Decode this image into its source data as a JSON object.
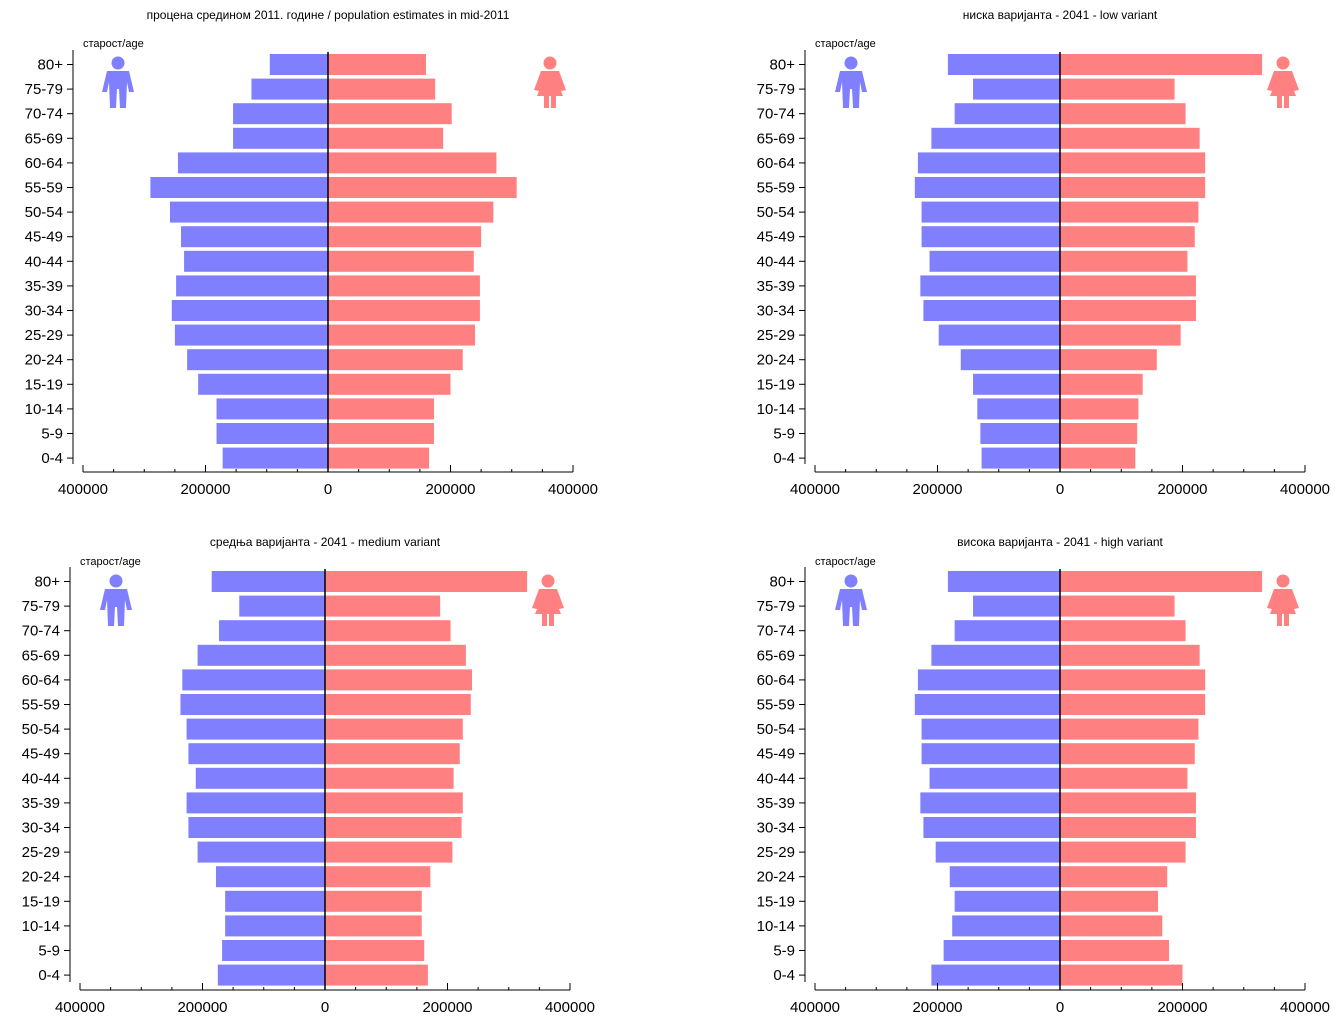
{
  "figure": {
    "colors": {
      "male": "#8080ff",
      "female": "#ff8080",
      "axis": "#000000",
      "text": "#000000"
    }
  },
  "chart_data": [
    {
      "type": "bar",
      "orientation": "horizontal-pyramid",
      "title": "процена средином 2011. године / population estimates in mid-2011",
      "ylabel": "старост/age",
      "categories": [
        "80+",
        "75-79",
        "70-74",
        "65-69",
        "60-64",
        "55-59",
        "50-54",
        "45-49",
        "40-44",
        "35-39",
        "30-34",
        "25-29",
        "20-24",
        "15-19",
        "10-14",
        "5-9",
        "0-4"
      ],
      "xlim": [
        -400000,
        400000
      ],
      "x_ticks": [
        -400000,
        -200000,
        0,
        200000,
        400000
      ],
      "x_tick_labels": [
        "400000",
        "200000",
        "0",
        "200000",
        "400000"
      ],
      "icons": {
        "male": "male-figure-icon",
        "female": "female-figure-icon"
      },
      "series": [
        {
          "values": [
            95000,
            125000,
            155000,
            155000,
            245000,
            290000,
            258000,
            240000,
            235000,
            248000,
            255000,
            250000,
            230000,
            212000,
            182000,
            182000,
            172000
          ]
        },
        {
          "values": [
            160000,
            175000,
            202000,
            188000,
            275000,
            308000,
            270000,
            250000,
            238000,
            248000,
            248000,
            240000,
            220000,
            200000,
            173000,
            173000,
            165000
          ]
        }
      ]
    },
    {
      "type": "bar",
      "orientation": "horizontal-pyramid",
      "title": "ниска варијанта - 2041 - low variant",
      "ylabel": "старост/age",
      "categories": [
        "80+",
        "75-79",
        "70-74",
        "65-69",
        "60-64",
        "55-59",
        "50-54",
        "45-49",
        "40-44",
        "35-39",
        "30-34",
        "25-29",
        "20-24",
        "15-19",
        "10-14",
        "5-9",
        "0-4"
      ],
      "xlim": [
        -400000,
        400000
      ],
      "x_ticks": [
        -400000,
        -200000,
        0,
        200000,
        400000
      ],
      "x_tick_labels": [
        "400000",
        "200000",
        "0",
        "200000",
        "400000"
      ],
      "icons": {
        "male": "male-figure-icon",
        "female": "female-figure-icon"
      },
      "series": [
        {
          "values": [
            183000,
            142000,
            172000,
            210000,
            232000,
            237000,
            226000,
            226000,
            213000,
            228000,
            223000,
            198000,
            162000,
            142000,
            135000,
            130000,
            128000
          ]
        },
        {
          "values": [
            330000,
            187000,
            205000,
            228000,
            237000,
            237000,
            226000,
            220000,
            208000,
            222000,
            222000,
            197000,
            158000,
            135000,
            128000,
            126000,
            123000
          ]
        }
      ]
    },
    {
      "type": "bar",
      "orientation": "horizontal-pyramid",
      "title": "средња варијанта - 2041 - medium variant",
      "ylabel": "старост/age",
      "categories": [
        "80+",
        "75-79",
        "70-74",
        "65-69",
        "60-64",
        "55-59",
        "50-54",
        "45-49",
        "40-44",
        "35-39",
        "30-34",
        "25-29",
        "20-24",
        "15-19",
        "10-14",
        "5-9",
        "0-4"
      ],
      "xlim": [
        -400000,
        400000
      ],
      "x_ticks": [
        -400000,
        -200000,
        0,
        200000,
        400000
      ],
      "x_tick_labels": [
        "400000",
        "200000",
        "0",
        "200000",
        "400000"
      ],
      "icons": {
        "male": "male-figure-icon",
        "female": "female-figure-icon"
      },
      "series": [
        {
          "values": [
            185000,
            140000,
            173000,
            208000,
            233000,
            236000,
            226000,
            223000,
            211000,
            226000,
            223000,
            208000,
            178000,
            163000,
            163000,
            168000,
            175000
          ]
        },
        {
          "values": [
            330000,
            188000,
            205000,
            230000,
            240000,
            238000,
            225000,
            220000,
            210000,
            225000,
            223000,
            208000,
            172000,
            158000,
            158000,
            162000,
            168000
          ]
        }
      ]
    },
    {
      "type": "bar",
      "orientation": "horizontal-pyramid",
      "title": "висока варијанта - 2041 - high variant",
      "ylabel": "старост/age",
      "categories": [
        "80+",
        "75-79",
        "70-74",
        "65-69",
        "60-64",
        "55-59",
        "50-54",
        "45-49",
        "40-44",
        "35-39",
        "30-34",
        "25-29",
        "20-24",
        "15-19",
        "10-14",
        "5-9",
        "0-4"
      ],
      "xlim": [
        -400000,
        400000
      ],
      "x_ticks": [
        -400000,
        -200000,
        0,
        200000,
        400000
      ],
      "x_tick_labels": [
        "400000",
        "200000",
        "0",
        "200000",
        "400000"
      ],
      "icons": {
        "male": "male-figure-icon",
        "female": "female-figure-icon"
      },
      "series": [
        {
          "values": [
            183000,
            142000,
            172000,
            210000,
            232000,
            237000,
            226000,
            226000,
            213000,
            228000,
            223000,
            203000,
            180000,
            172000,
            176000,
            190000,
            210000
          ]
        },
        {
          "values": [
            330000,
            187000,
            205000,
            228000,
            237000,
            237000,
            226000,
            220000,
            208000,
            222000,
            222000,
            205000,
            175000,
            160000,
            167000,
            178000,
            200000
          ]
        }
      ]
    }
  ]
}
